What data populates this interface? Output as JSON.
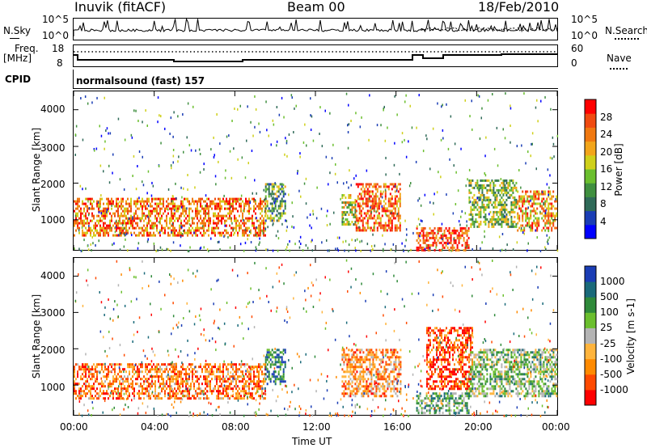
{
  "header": {
    "station": "Inuvik (fitACF)",
    "beam": "Beam 00",
    "date": "18/Feb/2010"
  },
  "side_labels": {
    "nsky": "N.Sky",
    "nsearch": "N.Search",
    "freq": "Freq.",
    "mhz": "[MHz]",
    "nave": "Nave",
    "cpid": "CPID",
    "cpid_value": "normalsound (fast) 157"
  },
  "noise_panel": {
    "left_ticks": [
      "10^5",
      "10^0"
    ],
    "right_ticks": [
      "10^5",
      "10^0"
    ]
  },
  "freq_panel": {
    "left_ticks": [
      "18",
      "8"
    ],
    "right_ticks": [
      "60",
      "0"
    ]
  },
  "range_ticks": [
    "4000",
    "3000",
    "2000",
    "1000"
  ],
  "time_ticks": [
    "00:00",
    "04:00",
    "08:00",
    "12:00",
    "16:00",
    "20:00",
    "00:00"
  ],
  "xlabel": "Time UT",
  "ylabel": "Slant Range [km]",
  "chart_data": [
    {
      "type": "heatmap",
      "title": "",
      "xlabel": "Time UT",
      "ylabel": "Slant Range [km]",
      "xlim": [
        0,
        24
      ],
      "ylim": [
        180,
        4500
      ],
      "colorbar": {
        "label": "Power [dB]",
        "ticks": [
          "28",
          "24",
          "20",
          "16",
          "12",
          "8",
          "4"
        ],
        "range": [
          0,
          30
        ],
        "colors": [
          "#0000ff",
          "#1a3db5",
          "#2f6a58",
          "#3f8f3f",
          "#6bbf2e",
          "#cfd01a",
          "#f2a51a",
          "#f07810",
          "#f04a10",
          "#ff0000"
        ]
      },
      "echo_regions": [
        {
          "t": [
            0,
            9.5
          ],
          "range": [
            600,
            1600
          ],
          "level": 0.85
        },
        {
          "t": [
            9.5,
            10.5
          ],
          "range": [
            1000,
            2000
          ],
          "level": 0.5
        },
        {
          "t": [
            13.3,
            14
          ],
          "range": [
            900,
            1700
          ],
          "level": 0.6
        },
        {
          "t": [
            14,
            16.2
          ],
          "range": [
            700,
            2000
          ],
          "level": 0.9
        },
        {
          "t": [
            17,
            19.6
          ],
          "range": [
            200,
            800
          ],
          "level": 0.95
        },
        {
          "t": [
            19.6,
            22
          ],
          "range": [
            800,
            2100
          ],
          "level": 0.55
        },
        {
          "t": [
            22,
            24
          ],
          "range": [
            700,
            1800
          ],
          "level": 0.8
        }
      ]
    },
    {
      "type": "heatmap",
      "title": "",
      "xlabel": "Time UT",
      "ylabel": "Slant Range [km]",
      "xlim": [
        0,
        24
      ],
      "ylim": [
        180,
        4500
      ],
      "colorbar": {
        "label": "Velocity [m s-1]",
        "ticks": [
          "1000",
          "500",
          "100",
          "25",
          "-25",
          "-100",
          "-500",
          "-1000"
        ],
        "range": [
          -1000,
          1000
        ],
        "colors": [
          "#ff0000",
          "#ff4a00",
          "#ff8a00",
          "#ffb43c",
          "#b4b4b4",
          "#6bbf2e",
          "#2f8a3a",
          "#1a6a7a",
          "#1a3db5"
        ]
      },
      "echo_regions": [
        {
          "t": [
            0,
            9.5
          ],
          "range": [
            600,
            1600
          ],
          "level": -0.5
        },
        {
          "t": [
            9.5,
            10.5
          ],
          "range": [
            1000,
            2000
          ],
          "level": 0.6
        },
        {
          "t": [
            13.3,
            16.2
          ],
          "range": [
            700,
            2000
          ],
          "level": -0.4
        },
        {
          "t": [
            17,
            19.6
          ],
          "range": [
            200,
            800
          ],
          "level": 0.3
        },
        {
          "t": [
            17.5,
            19.8
          ],
          "range": [
            900,
            2600
          ],
          "level": -0.7
        },
        {
          "t": [
            19.6,
            24
          ],
          "range": [
            700,
            2000
          ],
          "level": 0.2
        }
      ]
    }
  ]
}
